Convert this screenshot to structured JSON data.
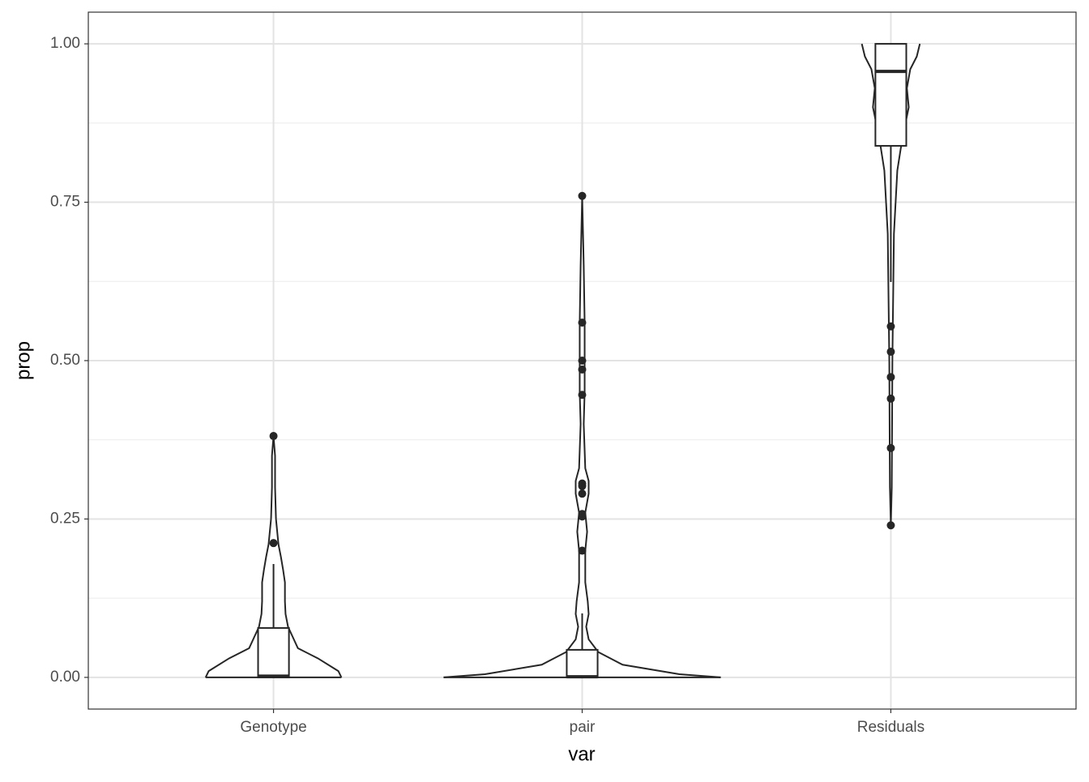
{
  "chart_data": {
    "type": "violin",
    "xlabel": "var",
    "ylabel": "prop",
    "categories": [
      "Genotype",
      "pair",
      "Residuals"
    ],
    "ylim": [
      -0.05,
      1.05
    ],
    "yticks": [
      {
        "value": 0,
        "label": "0.00"
      },
      {
        "value": 0.25,
        "label": "0.25"
      },
      {
        "value": 0.5,
        "label": "0.50"
      },
      {
        "value": 0.75,
        "label": "0.75"
      },
      {
        "value": 1,
        "label": "1.00"
      }
    ],
    "grid": true,
    "color": "#262626",
    "violins": [
      {
        "y": [
          0,
          0.01,
          0.03,
          0.046,
          0.08,
          0.1,
          0.12,
          0.15,
          0.17,
          0.19,
          0.21,
          0.25,
          0.3,
          0.35,
          0.381
        ],
        "width": [
          0.22,
          0.21,
          0.144,
          0.079,
          0.047,
          0.039,
          0.037,
          0.037,
          0.031,
          0.024,
          0.016,
          0.008,
          0.005,
          0.005,
          0
        ]
      },
      {
        "y": [
          0,
          0.005,
          0.02,
          0.04,
          0.06,
          0.08,
          0.1,
          0.12,
          0.15,
          0.2,
          0.23,
          0.26,
          0.29,
          0.31,
          0.33,
          0.4,
          0.45,
          0.5,
          0.56,
          0.65,
          0.76
        ],
        "width": [
          0.449,
          0.315,
          0.131,
          0.052,
          0.021,
          0.013,
          0.021,
          0.018,
          0.01,
          0.01,
          0.016,
          0.01,
          0.021,
          0.021,
          0.01,
          0.005,
          0.008,
          0.008,
          0.008,
          0.005,
          0
        ]
      },
      {
        "y": [
          0.24,
          0.3,
          0.5,
          0.62,
          0.7,
          0.8,
          0.85,
          0.9,
          0.93,
          0.96,
          0.98,
          1
        ],
        "width": [
          0,
          0.003,
          0.005,
          0.008,
          0.01,
          0.021,
          0.037,
          0.058,
          0.052,
          0.063,
          0.084,
          0.094
        ]
      }
    ],
    "boxes": [
      {
        "lower": 0,
        "q1": 0,
        "median": 0.002,
        "q3": 0.078,
        "upper": 0.179
      },
      {
        "lower": 0,
        "q1": 0,
        "median": 0.001,
        "q3": 0.0435,
        "upper": 0.101
      },
      {
        "lower": 0.624,
        "q1": 0.839,
        "median": 0.9565,
        "q3": 1,
        "upper": 1
      }
    ],
    "outliers": [
      [
        0.212,
        0.381
      ],
      [
        0.2,
        0.254,
        0.258,
        0.29,
        0.302,
        0.306,
        0.446,
        0.486,
        0.5,
        0.56,
        0.76
      ],
      [
        0.24,
        0.362,
        0.44,
        0.474,
        0.514,
        0.554
      ]
    ]
  }
}
